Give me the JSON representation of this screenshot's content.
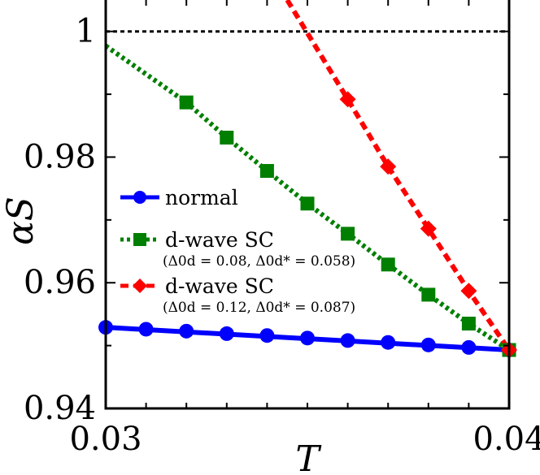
{
  "chart_data": {
    "type": "line",
    "xlabel": "T",
    "ylabel": "αS",
    "xlim": [
      0.03,
      0.04
    ],
    "ylim": [
      0.94,
      1.005
    ],
    "xticks": [
      0.03,
      0.04
    ],
    "xtick_labels": [
      "0.03",
      "0.04"
    ],
    "yticks": [
      0.94,
      0.96,
      0.98,
      1.0
    ],
    "ytick_labels": [
      "0.94",
      "0.96",
      "0.98",
      "1"
    ],
    "grid": false,
    "legend_position": "center-left",
    "reference_line": {
      "y": 1.0,
      "style": "dotted",
      "color": "#000000"
    },
    "series": [
      {
        "name": "normal",
        "sublabel": "",
        "color": "#0000ff",
        "linestyle": "solid",
        "marker": "circle",
        "x": [
          0.03,
          0.031,
          0.032,
          0.033,
          0.034,
          0.035,
          0.036,
          0.037,
          0.038,
          0.039,
          0.04
        ],
        "y": [
          0.9529,
          0.9526,
          0.9523,
          0.9519,
          0.9516,
          0.9512,
          0.9508,
          0.9505,
          0.9501,
          0.9497,
          0.9493
        ],
        "line_x": [
          0.03,
          0.04
        ],
        "line_y": [
          0.9529,
          0.9493
        ]
      },
      {
        "name": "d-wave SC",
        "sublabel": "(Δ0d = 0.08, Δ0d* = 0.058)",
        "color": "#007f00",
        "linestyle": "dotted",
        "marker": "square",
        "x": [
          0.032,
          0.033,
          0.034,
          0.035,
          0.036,
          0.037,
          0.038,
          0.039,
          0.04
        ],
        "y": [
          0.9887,
          0.9831,
          0.9778,
          0.9726,
          0.9678,
          0.9629,
          0.9581,
          0.9535,
          0.9493
        ],
        "line_x": [
          0.03,
          0.032,
          0.033,
          0.034,
          0.035,
          0.036,
          0.037,
          0.038,
          0.039,
          0.04
        ],
        "line_y": [
          0.9977,
          0.9887,
          0.9831,
          0.9778,
          0.9726,
          0.9678,
          0.9629,
          0.9581,
          0.9535,
          0.9493
        ]
      },
      {
        "name": "d-wave SC",
        "sublabel": "(Δ0d = 0.12, Δ0d* = 0.087)",
        "color": "#ff0000",
        "linestyle": "dashed",
        "marker": "diamond",
        "x": [
          0.036,
          0.037,
          0.038,
          0.039,
          0.04
        ],
        "y": [
          0.9892,
          0.9785,
          0.9686,
          0.9587,
          0.9493
        ],
        "line_x": [
          0.0345,
          0.036,
          0.037,
          0.038,
          0.039,
          0.04
        ],
        "line_y": [
          1.005,
          0.9892,
          0.9785,
          0.9686,
          0.9587,
          0.9493
        ]
      }
    ]
  }
}
